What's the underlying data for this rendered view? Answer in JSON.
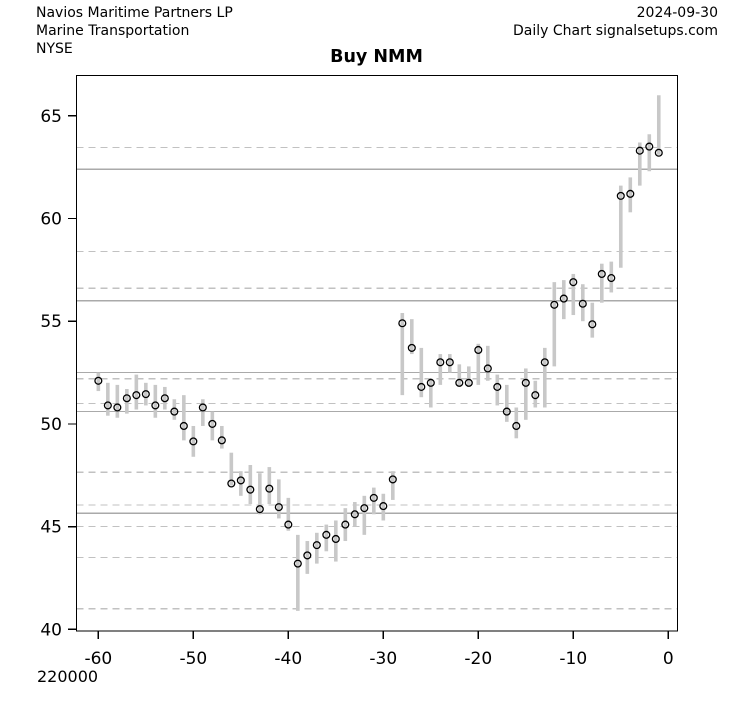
{
  "header": {
    "company": "Navios Maritime Partners LP",
    "sector": "Marine Transportation",
    "exchange": "NYSE",
    "date": "2024-09-30",
    "source": "Daily Chart signalsetups.com"
  },
  "title": "Buy NMM",
  "footer": {
    "volume": "220000"
  },
  "chart_data": {
    "type": "bar",
    "subtype": "high-low-close",
    "title": "Buy NMM",
    "xlabel": "",
    "ylabel": "",
    "grid": false,
    "legend": "none",
    "x_ticks": [
      -60,
      -50,
      -40,
      -30,
      -20,
      -10,
      0
    ],
    "y_ticks": [
      40,
      45,
      50,
      55,
      60,
      65
    ],
    "xlim": [
      -62.3,
      0.97
    ],
    "ylim": [
      39.92,
      66.96
    ],
    "x": [
      -60,
      -59,
      -58,
      -57,
      -56,
      -55,
      -54,
      -53,
      -52,
      -51,
      -50,
      -49,
      -48,
      -47,
      -46,
      -45,
      -44,
      -43,
      -42,
      -41,
      -40,
      -39,
      -38,
      -37,
      -36,
      -35,
      -34,
      -33,
      -32,
      -31,
      -30,
      -29,
      -28,
      -27,
      -26,
      -25,
      -24,
      -23,
      -22,
      -21,
      -20,
      -19,
      -18,
      -17,
      -16,
      -15,
      -14,
      -13,
      -12,
      -11,
      -10,
      -9,
      -8,
      -7,
      -6,
      -5,
      -4,
      -3,
      -2,
      -1
    ],
    "series": [
      {
        "name": "high",
        "values": [
          52.5,
          52.0,
          51.9,
          51.7,
          52.4,
          52.0,
          51.9,
          51.8,
          51.2,
          51.4,
          49.9,
          51.2,
          50.6,
          49.9,
          48.6,
          47.7,
          48.0,
          47.6,
          47.9,
          47.3,
          46.4,
          44.6,
          44.3,
          44.7,
          45.1,
          45.3,
          45.9,
          46.2,
          46.5,
          46.9,
          46.6,
          47.7,
          55.4,
          55.1,
          53.7,
          52.2,
          53.4,
          53.4,
          52.9,
          52.8,
          53.9,
          53.8,
          52.4,
          51.9,
          50.8,
          52.7,
          52.1,
          53.7,
          56.9,
          57.0,
          57.3,
          56.8,
          55.9,
          57.8,
          57.9,
          61.6,
          62.0,
          63.7,
          64.1,
          66.0
        ]
      },
      {
        "name": "low",
        "values": [
          51.6,
          50.4,
          50.3,
          50.5,
          50.7,
          50.9,
          50.3,
          50.7,
          50.2,
          49.2,
          48.4,
          49.9,
          49.2,
          48.8,
          47.0,
          46.5,
          46.1,
          45.6,
          46.1,
          45.4,
          44.8,
          40.9,
          42.7,
          43.2,
          43.8,
          43.3,
          44.3,
          45.0,
          44.6,
          45.6,
          45.3,
          46.3,
          51.4,
          53.4,
          51.3,
          50.8,
          51.9,
          52.5,
          51.8,
          51.8,
          51.9,
          52.1,
          50.9,
          50.1,
          49.3,
          50.2,
          50.8,
          50.8,
          52.8,
          55.1,
          55.3,
          55.0,
          54.2,
          55.9,
          56.4,
          57.6,
          60.3,
          61.6,
          62.3,
          63.1
        ]
      },
      {
        "name": "close",
        "values": [
          52.1,
          50.9,
          50.8,
          51.25,
          51.4,
          51.45,
          50.9,
          51.25,
          50.6,
          49.9,
          49.15,
          50.8,
          50.0,
          49.2,
          47.1,
          47.25,
          46.8,
          45.85,
          46.85,
          45.95,
          45.1,
          43.2,
          43.6,
          44.1,
          44.6,
          44.4,
          45.1,
          45.6,
          45.9,
          46.4,
          46.0,
          47.3,
          54.9,
          53.7,
          51.8,
          52.0,
          53.0,
          53.0,
          52.0,
          52.0,
          53.6,
          52.7,
          51.8,
          50.6,
          49.9,
          52.0,
          51.4,
          53.0,
          55.8,
          56.1,
          56.9,
          55.85,
          54.85,
          57.3,
          57.1,
          61.1,
          61.2,
          63.3,
          63.5,
          63.2
        ]
      }
    ],
    "levels": {
      "solid": [
        62.4,
        56.0,
        52.5,
        50.6,
        45.65
      ],
      "dashed": [
        63.45,
        58.4,
        56.6,
        52.2,
        51.0,
        47.65,
        46.05,
        45.0,
        43.5,
        41.0
      ]
    },
    "colors": {
      "bar": "#c8c8c8",
      "close_marker": "#000000",
      "solid_level": "#aaaaaa",
      "dashed_level": "#c1c1c1",
      "axis": "#000000",
      "background": "#ffffff"
    }
  }
}
